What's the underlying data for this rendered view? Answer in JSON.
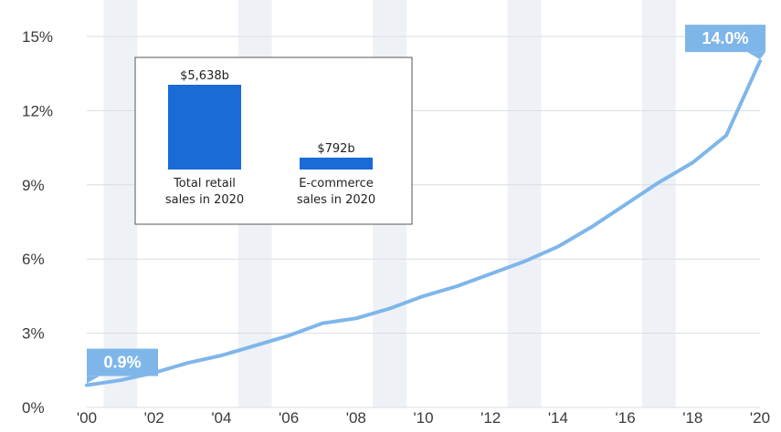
{
  "colors": {
    "line": "#7fb6ea",
    "callout": "#7fb6ea",
    "band": "#eef2f7",
    "grid": "#d9dde3",
    "bar": "#1a6ad8"
  },
  "chart_data": [
    {
      "type": "line",
      "title": "",
      "xlabel": "",
      "ylabel": "",
      "x": [
        2000,
        2001,
        2002,
        2003,
        2004,
        2005,
        2006,
        2007,
        2008,
        2009,
        2010,
        2011,
        2012,
        2013,
        2014,
        2015,
        2016,
        2017,
        2018,
        2019,
        2020
      ],
      "series": [
        {
          "values": [
            0.9,
            1.1,
            1.4,
            1.8,
            2.1,
            2.5,
            2.9,
            3.4,
            3.6,
            4.0,
            4.5,
            4.9,
            5.4,
            5.9,
            6.5,
            7.3,
            8.2,
            9.1,
            9.9,
            11.0,
            14.0
          ]
        }
      ],
      "xlim": [
        2000,
        2020
      ],
      "ylim": [
        0,
        15
      ],
      "x_tick_labels": [
        "'00",
        "'02",
        "'04",
        "'06",
        "'08",
        "'10",
        "'12",
        "'14",
        "'16",
        "'18",
        "'20"
      ],
      "y_tick_labels": [
        "0%",
        "3%",
        "6%",
        "9%",
        "12%",
        "15%"
      ],
      "y_ticks": [
        0,
        3,
        6,
        9,
        12,
        15
      ],
      "grid": true,
      "annotations": [
        {
          "x": 2000,
          "y": 0.9,
          "text": "0.9%"
        },
        {
          "x": 2020,
          "y": 14.0,
          "text": "14.0%"
        }
      ]
    },
    {
      "type": "bar",
      "categories": [
        "Total retail sales in 2020",
        "E-commerce sales in 2020"
      ],
      "category_lines": [
        [
          "Total retail",
          "sales in 2020"
        ],
        [
          "E-commerce",
          "sales in 2020"
        ]
      ],
      "values": [
        5638,
        792
      ],
      "value_labels": [
        "$5,638b",
        "$792b"
      ],
      "unit": "billion USD"
    }
  ]
}
